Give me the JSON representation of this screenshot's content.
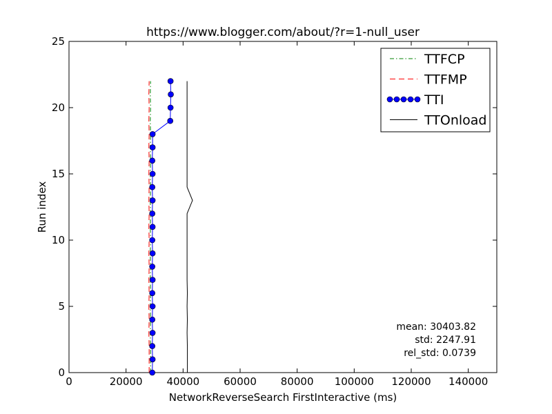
{
  "chart_data": {
    "type": "line",
    "title": "https://www.blogger.com/about/?r=1-null_user",
    "xlabel": "NetworkReverseSearch FirstInteractive (ms)",
    "ylabel": "Run index",
    "xlim": [
      0,
      150000
    ],
    "ylim": [
      0,
      25
    ],
    "xticks": [
      0,
      20000,
      40000,
      60000,
      80000,
      100000,
      120000,
      140000
    ],
    "xtick_labels": [
      "0",
      "20000",
      "40000",
      "60000",
      "80000",
      "100000",
      "120000",
      "140000"
    ],
    "yticks": [
      0,
      5,
      10,
      15,
      20,
      25
    ],
    "ytick_labels": [
      "0",
      "5",
      "10",
      "15",
      "20",
      "25"
    ],
    "grid": false,
    "legend_position": "top-right",
    "series": [
      {
        "name": "TTFCP",
        "color": "#008000",
        "style": "dash-dot",
        "marker": "none",
        "x": [
          28600,
          28600,
          28600,
          28500,
          28600,
          28500,
          28600,
          28500,
          28600,
          28500,
          28600,
          28500,
          28600,
          28500,
          28600,
          28500,
          28600,
          28500,
          28600,
          28500,
          28600,
          28500,
          28600
        ],
        "y": [
          0,
          1,
          2,
          3,
          4,
          5,
          6,
          7,
          8,
          9,
          10,
          11,
          12,
          13,
          14,
          15,
          16,
          17,
          18,
          19,
          20,
          21,
          22
        ]
      },
      {
        "name": "TTFMP",
        "color": "#ff0000",
        "style": "dashed",
        "marker": "none",
        "x": [
          28100,
          28100,
          28100,
          28000,
          28100,
          28000,
          28100,
          28000,
          28100,
          28000,
          28100,
          28000,
          28100,
          28000,
          28100,
          28000,
          28100,
          28000,
          28100,
          28000,
          28100,
          28000,
          28100
        ],
        "y": [
          0,
          1,
          2,
          3,
          4,
          5,
          6,
          7,
          8,
          9,
          10,
          11,
          12,
          13,
          14,
          15,
          16,
          17,
          18,
          19,
          20,
          21,
          22
        ]
      },
      {
        "name": "TTI",
        "color": "#0000ff",
        "style": "solid",
        "marker": "circle",
        "x": [
          29200,
          29300,
          29200,
          29300,
          29200,
          29300,
          29200,
          29300,
          29200,
          29300,
          29200,
          29300,
          29200,
          29300,
          29200,
          29300,
          29200,
          29300,
          29300,
          35500,
          35600,
          35700,
          35600
        ],
        "y": [
          0,
          1,
          2,
          3,
          4,
          5,
          6,
          7,
          8,
          9,
          10,
          11,
          12,
          13,
          14,
          15,
          16,
          17,
          18,
          19,
          20,
          21,
          22
        ]
      },
      {
        "name": "TTOnload",
        "color": "#000000",
        "style": "solid",
        "marker": "none",
        "x": [
          41500,
          41500,
          41500,
          41400,
          41500,
          41400,
          41500,
          41400,
          41400,
          41400,
          41400,
          41400,
          41400,
          43300,
          41400,
          41400,
          41400,
          41400,
          41400,
          41400,
          41400,
          41400,
          41400
        ],
        "y": [
          0,
          1,
          2,
          3,
          4,
          5,
          6,
          7,
          8,
          9,
          10,
          11,
          12,
          13,
          14,
          15,
          16,
          17,
          18,
          19,
          20,
          21,
          22
        ]
      }
    ],
    "annotations": [
      "mean: 30403.82",
      "std: 2247.91",
      "rel_std: 0.0739"
    ]
  }
}
